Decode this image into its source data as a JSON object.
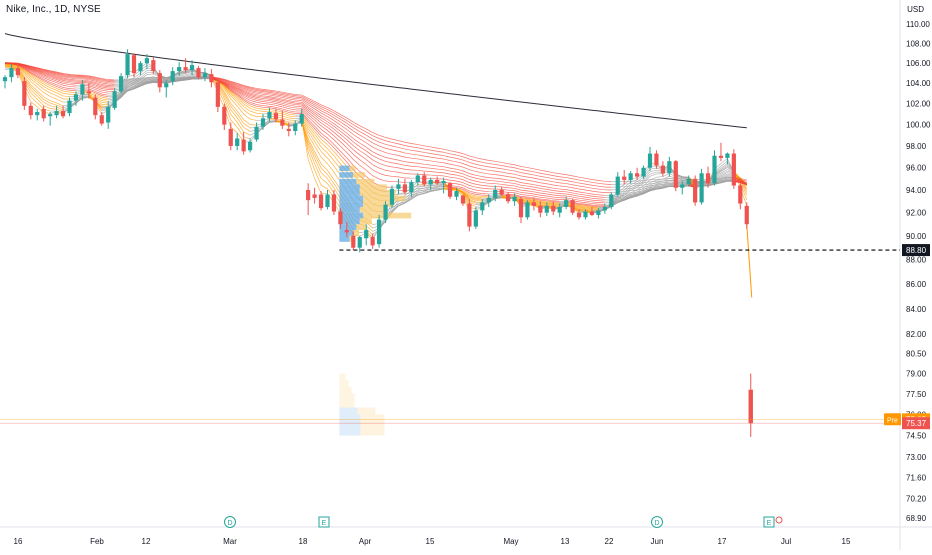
{
  "header": {
    "symbol_title": "Nike, Inc., 1D, NYSE",
    "currency": "USD"
  },
  "colors": {
    "up": "#26a69a",
    "down": "#ef5350",
    "ma200": "#2a2e39",
    "dashed_level": "#000000",
    "vp_up": "#5ea9e6",
    "vp_down": "#f5c96b",
    "ribbon_hot": "#f44336",
    "ribbon_warm": "#ff9800",
    "ribbon_cold": "#9e9e9e",
    "pre_market": "#ff9800"
  },
  "chart_data": {
    "type": "candlestick",
    "symbol": "Nike, Inc.",
    "interval": "1D",
    "exchange": "NYSE",
    "currency": "USD",
    "scale": "log",
    "ylim": [
      68.9,
      110.0
    ],
    "y_ticks": [
      "110.00",
      "108.00",
      "106.00",
      "104.00",
      "102.00",
      "100.00",
      "98.00",
      "96.00",
      "94.00",
      "92.00",
      "90.00",
      "88.00",
      "86.00",
      "84.00",
      "82.00",
      "80.50",
      "79.00",
      "77.50",
      "76.00",
      "74.50",
      "73.00",
      "71.60",
      "70.20",
      "68.90"
    ],
    "x_ticks": [
      "16",
      "Feb",
      "12",
      "Mar",
      "18",
      "Apr",
      "15",
      "May",
      "13",
      "22",
      "Jun",
      "17",
      "Jul",
      "15"
    ],
    "price_labels": [
      {
        "value": 88.8,
        "text": "88.80",
        "style": "dashed-level"
      },
      {
        "value": 75.65,
        "text": "75.65",
        "tag": "Pre",
        "style": "pre-market"
      },
      {
        "value": 75.37,
        "text": "75.37",
        "style": "last"
      }
    ],
    "event_markers": [
      {
        "date": "Mar 1",
        "label": "D"
      },
      {
        "date": "Mar 21",
        "label": "E"
      },
      {
        "date": "Jun 3",
        "label": "D"
      },
      {
        "date": "Jun 27",
        "label": "E"
      }
    ],
    "candles": [
      [
        "Jan 16",
        104.2,
        104.8,
        103.5,
        104.6
      ],
      [
        "Jan 17",
        104.6,
        105.9,
        104.1,
        105.5
      ],
      [
        "Jan 18",
        105.5,
        106.0,
        104.5,
        104.8
      ],
      [
        "Jan 19",
        104.2,
        104.6,
        101.4,
        101.8
      ],
      [
        "Jan 22",
        101.8,
        102.1,
        100.5,
        100.9
      ],
      [
        "Jan 23",
        100.9,
        101.5,
        100.4,
        101.2
      ],
      [
        "Jan 24",
        101.5,
        101.8,
        100.3,
        100.6
      ],
      [
        "Jan 25",
        100.8,
        101.2,
        99.9,
        101.0
      ],
      [
        "Jan 26",
        100.9,
        101.8,
        100.6,
        101.3
      ],
      [
        "Jan 29",
        101.3,
        101.8,
        100.6,
        100.8
      ],
      [
        "Jan 30",
        101.1,
        102.6,
        100.8,
        102.3
      ],
      [
        "Jan 31",
        102.3,
        103.2,
        101.8,
        102.9
      ],
      [
        "Feb 1",
        102.9,
        104.3,
        102.3,
        103.9
      ],
      [
        "Feb 2",
        103.2,
        104.0,
        102.5,
        103.0
      ],
      [
        "Feb 5",
        102.6,
        102.9,
        100.5,
        100.9
      ],
      [
        "Feb 6",
        100.9,
        101.2,
        99.9,
        100.1
      ],
      [
        "Feb 7",
        100.2,
        102.2,
        99.6,
        101.7
      ],
      [
        "Feb 8",
        101.6,
        103.5,
        101.4,
        103.2
      ],
      [
        "Feb 9",
        103.2,
        105.0,
        103.0,
        104.7
      ],
      [
        "Feb 12",
        104.8,
        107.4,
        104.5,
        106.9
      ],
      [
        "Feb 13",
        106.8,
        107.0,
        104.6,
        105.0
      ],
      [
        "Feb 14",
        105.2,
        106.2,
        104.8,
        106.0
      ],
      [
        "Feb 15",
        106.0,
        106.9,
        105.4,
        106.5
      ],
      [
        "Feb 16",
        106.3,
        106.6,
        104.9,
        105.2
      ],
      [
        "Feb 20",
        105.0,
        105.3,
        103.1,
        103.6
      ],
      [
        "Feb 21",
        103.6,
        104.3,
        102.6,
        104.0
      ],
      [
        "Feb 22",
        104.2,
        105.6,
        103.8,
        105.2
      ],
      [
        "Feb 23",
        105.2,
        106.1,
        104.7,
        105.6
      ],
      [
        "Feb 26",
        105.6,
        106.5,
        105.0,
        105.3
      ],
      [
        "Feb 27",
        105.3,
        106.3,
        104.8,
        105.8
      ],
      [
        "Feb 28",
        105.5,
        105.7,
        104.4,
        104.6
      ],
      [
        "Feb 29",
        104.6,
        105.5,
        104.2,
        105.0
      ],
      [
        "Mar 1",
        104.9,
        105.4,
        103.6,
        104.1
      ],
      [
        "Mar 4",
        104.1,
        104.5,
        101.2,
        101.7
      ],
      [
        "Mar 5",
        101.7,
        102.0,
        99.5,
        100.0
      ],
      [
        "Mar 6",
        99.6,
        100.2,
        97.6,
        98.0
      ],
      [
        "Mar 7",
        98.0,
        99.2,
        97.6,
        98.7
      ],
      [
        "Mar 8",
        98.6,
        99.3,
        97.2,
        97.5
      ],
      [
        "Mar 11",
        97.6,
        98.7,
        97.4,
        98.4
      ],
      [
        "Mar 12",
        98.6,
        100.2,
        98.4,
        99.8
      ],
      [
        "Mar 13",
        99.8,
        101.0,
        99.5,
        100.6
      ],
      [
        "Mar 14",
        100.6,
        101.6,
        100.3,
        101.2
      ],
      [
        "Mar 15",
        101.1,
        101.5,
        100.2,
        100.5
      ],
      [
        "Mar 18",
        100.5,
        101.3,
        99.6,
        99.9
      ],
      [
        "Mar 19",
        99.6,
        100.2,
        98.9,
        99.4
      ],
      [
        "Mar 20",
        99.4,
        100.4,
        99.0,
        100.1
      ],
      [
        "Mar 21",
        100.1,
        101.5,
        99.8,
        101.0
      ],
      [
        "Mar 22",
        94.0,
        94.6,
        91.8,
        93.1
      ],
      [
        "Mar 25",
        93.6,
        94.2,
        92.8,
        93.3
      ],
      [
        "Mar 26",
        93.6,
        93.9,
        92.2,
        92.4
      ],
      [
        "Mar 27",
        92.5,
        94.0,
        92.3,
        93.6
      ],
      [
        "Mar 28",
        93.6,
        94.0,
        91.8,
        92.1
      ],
      [
        "Apr 1",
        92.1,
        92.4,
        90.6,
        91.0
      ],
      [
        "Apr 2",
        90.5,
        91.2,
        89.9,
        90.3
      ],
      [
        "Apr 3",
        90.0,
        90.4,
        88.8,
        89.0
      ],
      [
        "Apr 4",
        89.0,
        90.0,
        88.6,
        89.9
      ],
      [
        "Apr 5",
        89.8,
        91.0,
        89.2,
        90.5
      ],
      [
        "Apr 8",
        89.9,
        90.2,
        88.9,
        89.2
      ],
      [
        "Apr 9",
        89.3,
        91.8,
        89.0,
        91.4
      ],
      [
        "Apr 10",
        91.4,
        93.0,
        91.1,
        92.7
      ],
      [
        "Apr 11",
        92.7,
        94.4,
        92.4,
        94.1
      ],
      [
        "Apr 12",
        94.1,
        95.0,
        93.6,
        94.5
      ],
      [
        "Apr 15",
        94.5,
        95.0,
        93.6,
        93.8
      ],
      [
        "Apr 16",
        93.8,
        94.9,
        93.4,
        94.7
      ],
      [
        "Apr 17",
        94.7,
        95.5,
        94.4,
        95.3
      ],
      [
        "Apr 18",
        95.3,
        95.6,
        94.3,
        94.5
      ],
      [
        "Apr 19",
        94.5,
        95.1,
        94.0,
        94.9
      ],
      [
        "Apr 22",
        94.9,
        95.2,
        94.4,
        94.6
      ],
      [
        "Apr 23",
        94.6,
        95.1,
        93.7,
        94.8
      ],
      [
        "Apr 24",
        94.6,
        94.7,
        93.2,
        93.4
      ],
      [
        "Apr 25",
        93.4,
        94.2,
        93.1,
        93.9
      ],
      [
        "Apr 26",
        93.5,
        93.6,
        92.6,
        92.8
      ],
      [
        "Apr 29",
        92.8,
        93.2,
        90.4,
        90.8
      ],
      [
        "Apr 30",
        90.8,
        92.5,
        90.6,
        92.2
      ],
      [
        "May 1",
        92.2,
        93.2,
        91.8,
        92.9
      ],
      [
        "May 2",
        92.9,
        93.6,
        92.5,
        93.3
      ],
      [
        "May 3",
        93.3,
        94.4,
        93.0,
        94.0
      ],
      [
        "May 6",
        94.0,
        94.3,
        93.5,
        93.6
      ],
      [
        "May 7",
        93.6,
        93.8,
        92.8,
        93.0
      ],
      [
        "May 8",
        93.0,
        93.7,
        92.6,
        93.4
      ],
      [
        "May 9",
        93.2,
        93.4,
        91.1,
        91.6
      ],
      [
        "May 10",
        91.6,
        93.1,
        91.4,
        92.9
      ],
      [
        "May 13",
        92.9,
        93.3,
        92.2,
        92.6
      ],
      [
        "May 14",
        92.6,
        93.0,
        91.6,
        92.0
      ],
      [
        "May 15",
        92.0,
        92.9,
        91.7,
        92.6
      ],
      [
        "May 16",
        92.6,
        93.0,
        91.8,
        92.1
      ],
      [
        "May 17",
        92.0,
        92.8,
        91.6,
        92.5
      ],
      [
        "May 20",
        92.5,
        93.4,
        92.3,
        93.1
      ],
      [
        "May 21",
        93.1,
        93.2,
        91.8,
        92.0
      ],
      [
        "May 22",
        92.0,
        92.3,
        91.4,
        91.6
      ],
      [
        "May 23",
        91.6,
        92.3,
        91.4,
        92.1
      ],
      [
        "May 24",
        92.1,
        92.5,
        91.7,
        91.8
      ],
      [
        "May 28",
        91.8,
        92.4,
        91.5,
        92.2
      ],
      [
        "May 29",
        92.2,
        92.8,
        91.9,
        92.5
      ],
      [
        "May 30",
        92.5,
        93.8,
        92.3,
        93.6
      ],
      [
        "May 31",
        93.6,
        95.6,
        93.4,
        95.2
      ],
      [
        "Jun 3",
        95.2,
        95.8,
        94.5,
        94.9
      ],
      [
        "Jun 4",
        94.9,
        95.7,
        94.6,
        95.5
      ],
      [
        "Jun 5",
        95.5,
        96.0,
        94.9,
        95.2
      ],
      [
        "Jun 6",
        95.2,
        96.2,
        95.0,
        96.0
      ],
      [
        "Jun 7",
        96.0,
        97.9,
        95.7,
        97.3
      ],
      [
        "Jun 10",
        97.3,
        97.6,
        95.9,
        96.2
      ],
      [
        "Jun 11",
        96.2,
        96.6,
        95.2,
        95.5
      ],
      [
        "Jun 12",
        95.5,
        97.0,
        95.2,
        96.6
      ],
      [
        "Jun 13",
        96.6,
        96.7,
        93.9,
        94.2
      ],
      [
        "Jun 14",
        94.2,
        94.8,
        93.6,
        94.5
      ],
      [
        "Jun 17",
        94.5,
        95.3,
        94.3,
        95.0
      ],
      [
        "Jun 18",
        95.0,
        95.3,
        92.6,
        92.9
      ],
      [
        "Jun 20",
        92.9,
        95.9,
        92.7,
        95.5
      ],
      [
        "Jun 21",
        95.5,
        96.1,
        94.2,
        94.6
      ],
      [
        "Jun 24",
        94.6,
        97.6,
        94.4,
        97.1
      ],
      [
        "Jun 25",
        97.1,
        98.3,
        96.6,
        96.9
      ],
      [
        "Jun 26",
        96.9,
        97.4,
        96.3,
        97.3
      ],
      [
        "Jun 27",
        97.3,
        97.7,
        94.1,
        94.4
      ],
      [
        "Jun 28",
        94.4,
        94.6,
        92.3,
        92.8
      ],
      [
        "Jul 1",
        92.6,
        92.9,
        90.6,
        91.0
      ]
    ],
    "premarket_candle": {
      "date": "Jul 1 (Pre)",
      "open": 77.8,
      "high": 79.0,
      "low": 74.4,
      "close": 75.37
    }
  }
}
